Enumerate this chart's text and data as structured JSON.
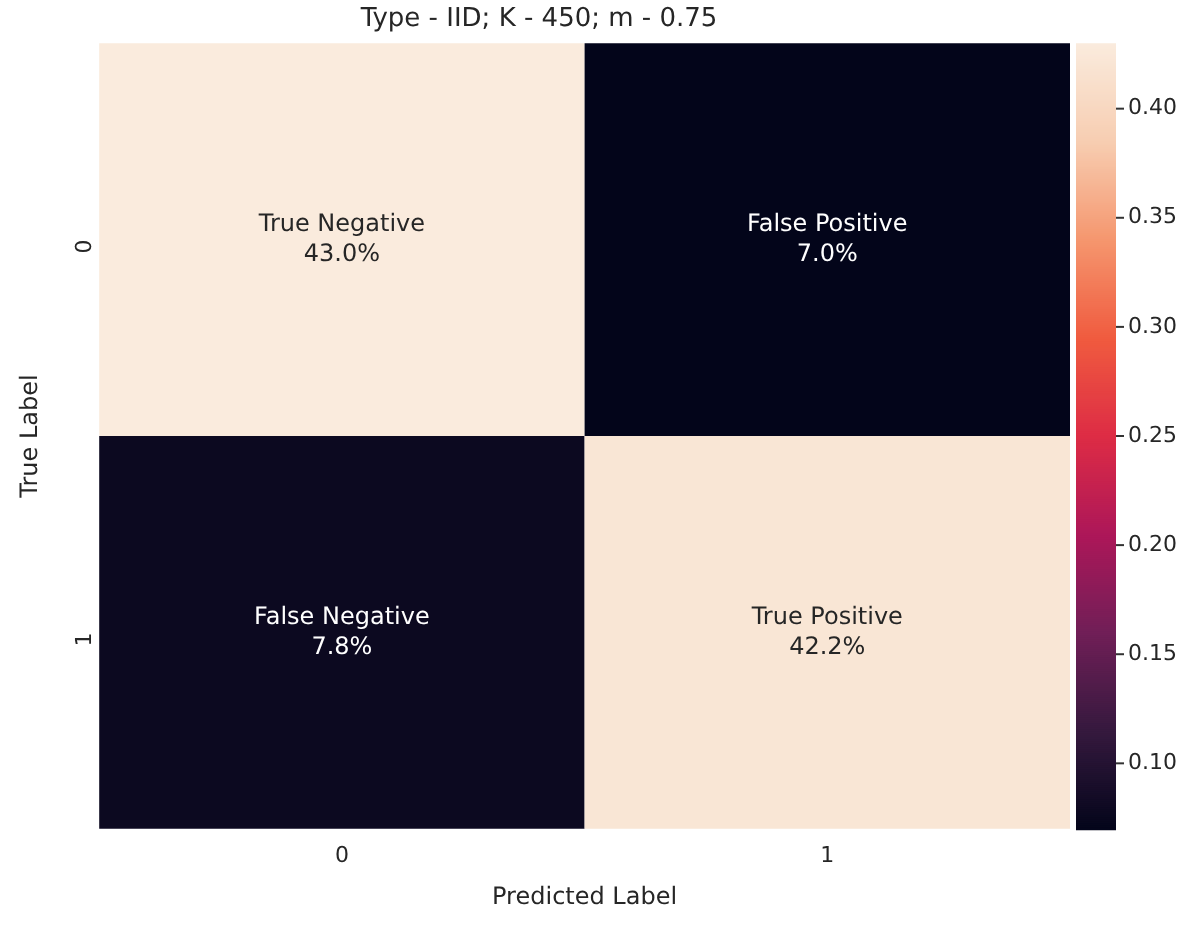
{
  "chart_data": {
    "type": "heatmap",
    "title": "Type - IID; K - 450; m - 0.75",
    "xlabel": "Predicted Label",
    "ylabel": "True Label",
    "categories": [
      "0",
      "1"
    ],
    "y_categories": [
      "0",
      "1"
    ],
    "cells": [
      [
        0.43,
        0.07
      ],
      [
        0.078,
        0.422
      ]
    ],
    "cell_labels": [
      [
        "True Negative\n43.0%",
        "False Positive\n7.0%"
      ],
      [
        "False Negative\n7.8%",
        "True Positive\n42.2%"
      ]
    ],
    "clim": [
      0.07,
      0.43
    ],
    "cticks": [
      {
        "value": 0.1,
        "label": "0.10"
      },
      {
        "value": 0.15,
        "label": "0.15"
      },
      {
        "value": 0.2,
        "label": "0.20"
      },
      {
        "value": 0.25,
        "label": "0.25"
      },
      {
        "value": 0.3,
        "label": "0.30"
      },
      {
        "value": 0.35,
        "label": "0.35"
      },
      {
        "value": 0.4,
        "label": "0.40"
      }
    ]
  }
}
